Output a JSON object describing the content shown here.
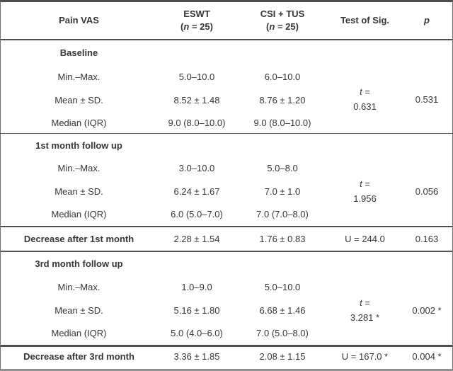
{
  "header": {
    "col_label": "Pain VAS",
    "eswt_name": "ESWT",
    "csi_name": "CSI + TUS",
    "n_open": "(",
    "n_italic": "n",
    "n_close": " = 25)",
    "test_label": "Test of Sig.",
    "p_label": "p"
  },
  "row_labels": {
    "min": "Min.–Max.",
    "mean": "Mean ± SD.",
    "median": "Median (IQR)"
  },
  "baseline": {
    "title": "Baseline",
    "min_eswt": "5.0–10.0",
    "min_csi": "6.0–10.0",
    "mean_eswt": "8.52 ± 1.48",
    "mean_csi": "8.76 ± 1.20",
    "median_eswt": "9.0 (8.0–10.0)",
    "median_csi": "9.0 (8.0–10.0)",
    "test_stat_italic": "t",
    "test_stat_eq": " =",
    "test_stat_value": "0.631",
    "p_value": "0.531"
  },
  "month1": {
    "title": "1st month follow up",
    "min_eswt": "3.0–10.0",
    "min_csi": "5.0–8.0",
    "mean_eswt": "6.24 ± 1.67",
    "mean_csi": "7.0 ± 1.0",
    "median_eswt": "6.0 (5.0–7.0)",
    "median_csi": "7.0 (7.0–8.0)",
    "test_stat_italic": "t",
    "test_stat_eq": " =",
    "test_stat_value": "1.956",
    "p_value": "0.056"
  },
  "decrease1": {
    "title": "Decrease after 1st month",
    "eswt": "2.28 ± 1.54",
    "csi": "1.76 ± 0.83",
    "test": "U = 244.0",
    "p_value": "0.163"
  },
  "month3": {
    "title": "3rd month follow up",
    "min_eswt": "1.0–9.0",
    "min_csi": "5.0–10.0",
    "mean_eswt": "5.16 ± 1.80",
    "mean_csi": "6.68 ± 1.46",
    "median_eswt": "5.0 (4.0–6.0)",
    "median_csi": "7.0 (5.0–8.0)",
    "test_stat_italic": "t",
    "test_stat_eq": " =",
    "test_stat_value": "3.281 *",
    "p_value": "0.002 *"
  },
  "decrease3": {
    "title": "Decrease after 3rd month",
    "eswt": "3.36 ± 1.85",
    "csi": "2.08 ± 1.15",
    "test": "U = 167.0 *",
    "p_value": "0.004 *"
  },
  "colors": {
    "background": "#ffffff",
    "text": "#363636",
    "border_dark": "#4d4d4d",
    "border_mid": "#6e6e6e",
    "border_light": "#8f8f8f"
  }
}
